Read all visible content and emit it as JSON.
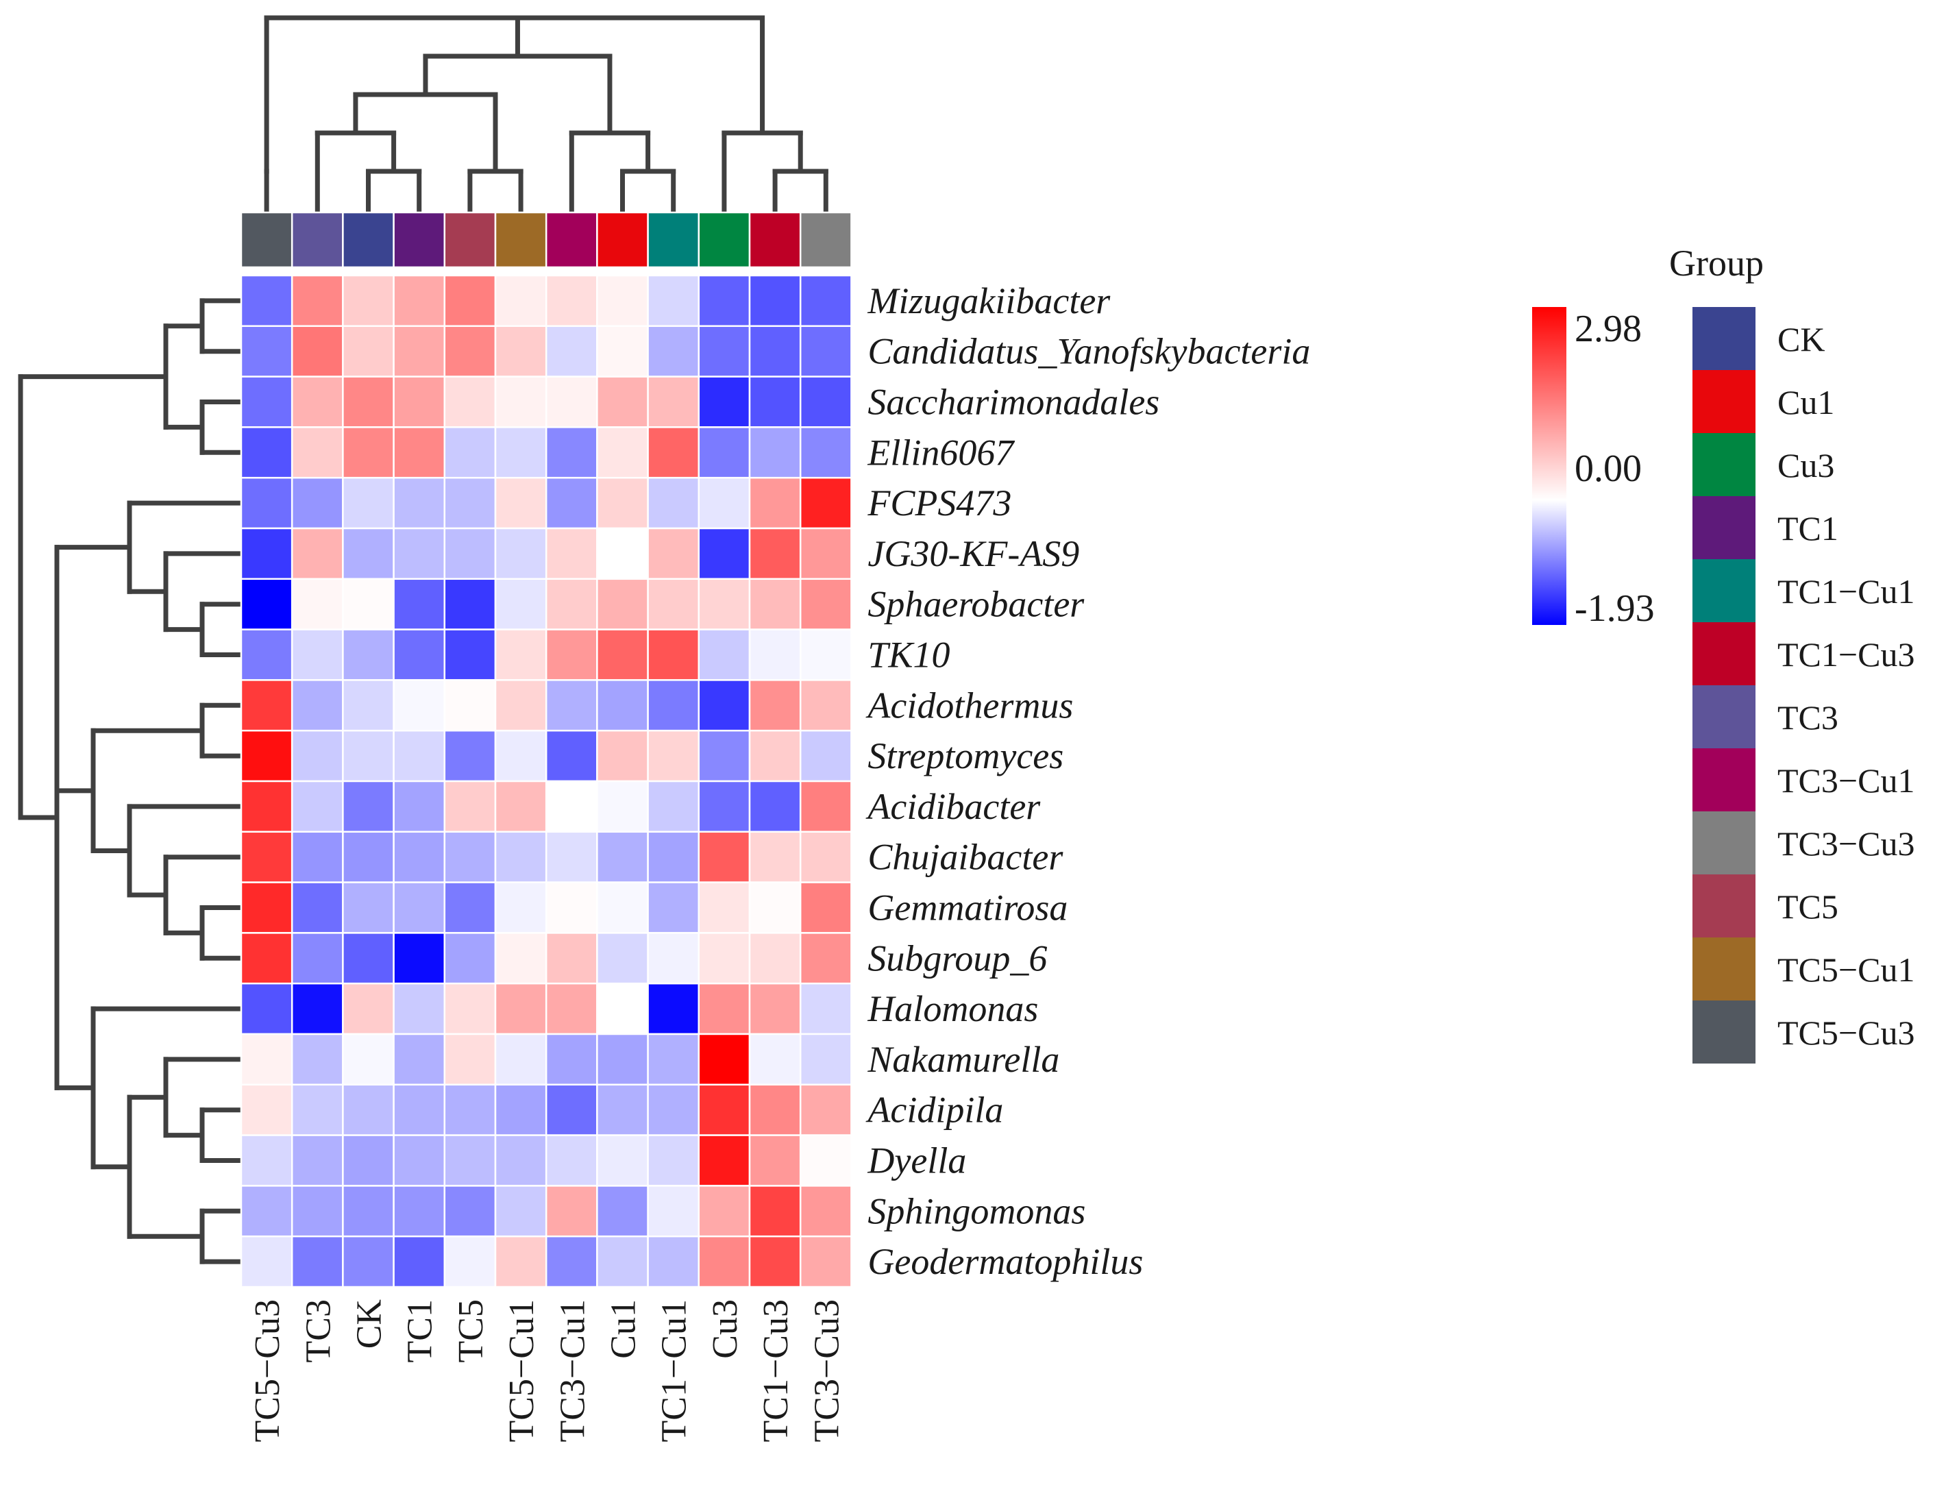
{
  "chart_data": {
    "type": "heatmap",
    "title": "",
    "columns": [
      "TC5−Cu3",
      "TC3",
      "CK",
      "TC1",
      "TC5",
      "TC5−Cu1",
      "TC3−Cu1",
      "Cu1",
      "TC1−Cu1",
      "Cu3",
      "TC1−Cu3",
      "TC3−Cu3"
    ],
    "column_groups": [
      "TC5-Cu3",
      "TC3",
      "CK",
      "TC1",
      "TC5",
      "TC5-Cu1",
      "TC3-Cu1",
      "Cu1",
      "TC1-Cu1",
      "Cu3",
      "TC1-Cu3",
      "TC3-Cu3"
    ],
    "rows": [
      "Mizugakiibacter",
      "Candidatus_Yanofskybacteria",
      "Saccharimonadales",
      "Ellin6067",
      "FCPS473",
      "JG30-KF-AS9",
      "Sphaerobacter",
      "TK10",
      "Acidothermus",
      "Streptomyces",
      "Acidibacter",
      "Chujaibacter",
      "Gemmatirosa",
      "Subgroup_6",
      "Halomonas",
      "Nakamurella",
      "Acidipila",
      "Dyella",
      "Sphingomonas",
      "Geodermatophilus"
    ],
    "values": [
      [
        -1.1,
        1.4,
        0.6,
        1.0,
        1.5,
        0.2,
        0.4,
        0.15,
        -0.3,
        -1.2,
        -1.3,
        -1.2
      ],
      [
        -1.0,
        1.6,
        0.6,
        1.0,
        1.4,
        0.6,
        -0.3,
        0.1,
        -0.6,
        -1.1,
        -1.2,
        -1.1
      ],
      [
        -1.1,
        0.9,
        1.4,
        1.1,
        0.4,
        0.15,
        0.15,
        0.9,
        0.8,
        -1.6,
        -1.3,
        -1.3
      ],
      [
        -1.3,
        0.6,
        1.4,
        1.4,
        -0.4,
        -0.3,
        -0.9,
        0.3,
        1.8,
        -1.0,
        -0.7,
        -0.9
      ],
      [
        -1.1,
        -0.8,
        -0.3,
        -0.5,
        -0.5,
        0.4,
        -0.8,
        0.5,
        -0.4,
        -0.2,
        1.2,
        2.6
      ],
      [
        -1.5,
        0.9,
        -0.6,
        -0.5,
        -0.5,
        -0.3,
        0.5,
        0.0,
        0.8,
        -1.5,
        1.9,
        1.2
      ],
      [
        -1.93,
        0.1,
        0.05,
        -1.2,
        -1.5,
        -0.2,
        0.6,
        0.9,
        0.6,
        0.5,
        0.8,
        1.3
      ],
      [
        -1.0,
        -0.3,
        -0.6,
        -1.1,
        -1.4,
        0.4,
        1.2,
        1.8,
        2.0,
        -0.4,
        -0.1,
        -0.05
      ],
      [
        2.3,
        -0.6,
        -0.3,
        -0.05,
        0.05,
        0.5,
        -0.6,
        -0.7,
        -1.0,
        -1.5,
        1.3,
        0.8
      ],
      [
        2.8,
        -0.4,
        -0.3,
        -0.3,
        -1.0,
        -0.15,
        -1.2,
        0.7,
        0.5,
        -0.9,
        0.6,
        -0.4
      ],
      [
        2.4,
        -0.4,
        -1.0,
        -0.7,
        0.6,
        0.8,
        0.0,
        -0.05,
        -0.4,
        -1.1,
        -1.2,
        1.5
      ],
      [
        2.3,
        -0.8,
        -0.8,
        -0.7,
        -0.6,
        -0.4,
        -0.25,
        -0.6,
        -0.7,
        1.9,
        0.5,
        0.6
      ],
      [
        2.5,
        -1.1,
        -0.6,
        -0.6,
        -1.0,
        -0.1,
        0.05,
        -0.05,
        -0.6,
        0.3,
        0.05,
        1.5
      ],
      [
        2.4,
        -0.9,
        -1.2,
        -1.85,
        -0.7,
        0.15,
        0.7,
        -0.3,
        -0.1,
        0.3,
        0.4,
        1.3
      ],
      [
        -1.3,
        -1.8,
        0.6,
        -0.4,
        0.4,
        1.0,
        1.0,
        0.0,
        -1.85,
        1.3,
        1.1,
        -0.3
      ],
      [
        0.15,
        -0.5,
        -0.05,
        -0.6,
        0.4,
        -0.15,
        -0.7,
        -0.7,
        -0.6,
        2.98,
        -0.1,
        -0.3
      ],
      [
        0.3,
        -0.4,
        -0.5,
        -0.6,
        -0.6,
        -0.7,
        -1.1,
        -0.6,
        -0.6,
        2.4,
        1.4,
        1.0
      ],
      [
        -0.3,
        -0.6,
        -0.7,
        -0.6,
        -0.5,
        -0.5,
        -0.3,
        -0.15,
        -0.3,
        2.7,
        1.2,
        0.05
      ],
      [
        -0.6,
        -0.7,
        -0.8,
        -0.8,
        -0.9,
        -0.4,
        1.0,
        -0.8,
        -0.15,
        1.0,
        2.2,
        1.2
      ],
      [
        -0.2,
        -1.0,
        -0.9,
        -1.2,
        -0.1,
        0.6,
        -0.9,
        -0.4,
        -0.5,
        1.4,
        2.1,
        1.0
      ]
    ],
    "color_scale": {
      "min": -1.93,
      "mid": 0.0,
      "max": 2.98,
      "min_color": "#0000ff",
      "mid_color": "#ffffff",
      "max_color": "#ff0000",
      "tick_labels": [
        "2.98",
        "0.00",
        "-1.93"
      ]
    },
    "legend": {
      "title": "Group",
      "placement": "right",
      "items": [
        {
          "label": "CK",
          "color": "#3a4490"
        },
        {
          "label": "Cu1",
          "color": "#e8070c"
        },
        {
          "label": "Cu3",
          "color": "#008641"
        },
        {
          "label": "TC1",
          "color": "#5e1a7a"
        },
        {
          "label": "TC1−Cu1",
          "color": "#008079"
        },
        {
          "label": "TC1−Cu3",
          "color": "#be0026"
        },
        {
          "label": "TC3",
          "color": "#5e5499"
        },
        {
          "label": "TC3−Cu1",
          "color": "#a2005a"
        },
        {
          "label": "TC3−Cu3",
          "color": "#808080"
        },
        {
          "label": "TC5",
          "color": "#a53c52"
        },
        {
          "label": "TC5−Cu1",
          "color": "#9d6a26"
        },
        {
          "label": "TC5−Cu3",
          "color": "#525860"
        }
      ]
    },
    "col_dendrogram": "((TC5-Cu3),(((TC3,(CK,TC1)),(TC5,TC5-Cu1)),(TC3-Cu1,(Cu1,TC1-Cu1))),(Cu3,(TC1-Cu3,TC3-Cu3)))",
    "row_dendrogram": "(((Mizugakiibacter,Candidatus_Yanofskybacteria),(Saccharimonadales,Ellin6067)),((FCPS473,(JG30-KF-AS9,(Sphaerobacter,TK10))),((Acidothermus,Streptomyces),(Acidibacter,(Chujaibacter,(Gemmatirosa,Subgroup_6)))),(Halomonas,((Nakamurella,(Acidipila,Dyella)),(Sphingomonas,Geodermatophilus)))))"
  }
}
